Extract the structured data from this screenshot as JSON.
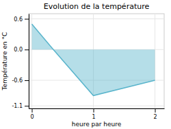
{
  "chart_data": {
    "type": "area",
    "title": "Evolution de la température",
    "xlabel": "heure par heure",
    "ylabel": "Température en °C",
    "x": [
      0,
      0.35,
      1.0,
      2.0
    ],
    "values": [
      0.5,
      0.0,
      -0.9,
      -0.6
    ],
    "color": "#5ab5cc",
    "xlim": [
      -0.05,
      2.15
    ],
    "ylim": [
      -1.15,
      0.7
    ],
    "xticks": [
      0,
      1,
      2
    ],
    "yticks": [
      -1.1,
      -0.6,
      {
        "value": 0.0,
        "label": "0.0"
      },
      0.6
    ],
    "grid": true
  }
}
